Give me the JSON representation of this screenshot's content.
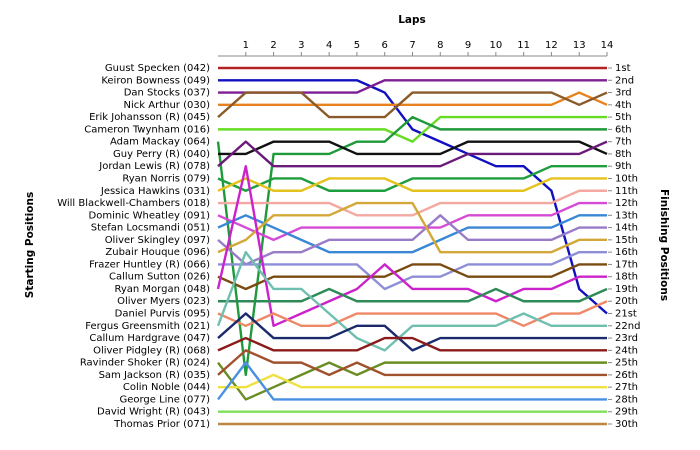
{
  "chart_data": {
    "type": "line",
    "x_label": "Laps",
    "y_label": "Starting Positions",
    "y2_label": "Finishing Positions",
    "x": [
      0,
      1,
      2,
      3,
      4,
      5,
      6,
      7,
      8,
      9,
      10,
      11,
      12,
      13,
      14
    ],
    "xlim": [
      0,
      14
    ],
    "xticks": [
      1,
      2,
      3,
      4,
      5,
      6,
      7,
      8,
      9,
      10,
      11,
      12,
      13,
      14
    ],
    "ylim": [
      30,
      1
    ],
    "y2lim": [
      30,
      1
    ],
    "y2ticks": [
      {
        "value": 1,
        "label": "1st"
      },
      {
        "value": 2,
        "label": "2nd"
      },
      {
        "value": 3,
        "label": "3rd"
      },
      {
        "value": 4,
        "label": "4th"
      },
      {
        "value": 5,
        "label": "5th"
      },
      {
        "value": 6,
        "label": "6th"
      },
      {
        "value": 7,
        "label": "7th"
      },
      {
        "value": 8,
        "label": "8th"
      },
      {
        "value": 9,
        "label": "9th"
      },
      {
        "value": 10,
        "label": "10th"
      },
      {
        "value": 11,
        "label": "11th"
      },
      {
        "value": 12,
        "label": "12th"
      },
      {
        "value": 13,
        "label": "13th"
      },
      {
        "value": 14,
        "label": "14th"
      },
      {
        "value": 15,
        "label": "15th"
      },
      {
        "value": 16,
        "label": "16th"
      },
      {
        "value": 17,
        "label": "17th"
      },
      {
        "value": 18,
        "label": "18th"
      },
      {
        "value": 19,
        "label": "19th"
      },
      {
        "value": 20,
        "label": "20th"
      },
      {
        "value": 21,
        "label": "21st"
      },
      {
        "value": 22,
        "label": "22nd"
      },
      {
        "value": 23,
        "label": "23rd"
      },
      {
        "value": 24,
        "label": "24th"
      },
      {
        "value": 25,
        "label": "25th"
      },
      {
        "value": 26,
        "label": "26th"
      },
      {
        "value": 27,
        "label": "27th"
      },
      {
        "value": 28,
        "label": "28th"
      },
      {
        "value": 29,
        "label": "29th"
      },
      {
        "value": 30,
        "label": "30th"
      }
    ],
    "series": [
      {
        "name": "Guust Specken (042)",
        "color": "#b22222",
        "values": [
          1,
          1,
          1,
          1,
          1,
          1,
          1,
          1,
          1,
          1,
          1,
          1,
          1,
          1,
          1
        ]
      },
      {
        "name": "Keiron Bowness (049)",
        "color": "#1010c0",
        "values": [
          2,
          2,
          2,
          2,
          2,
          2,
          3,
          6,
          7,
          8,
          9,
          9,
          11,
          19,
          21
        ]
      },
      {
        "name": "Dan Stocks (037)",
        "color": "#7b1f92",
        "values": [
          3,
          3,
          3,
          3,
          3,
          3,
          2,
          2,
          2,
          2,
          2,
          2,
          2,
          2,
          2
        ]
      },
      {
        "name": "Nick Arthur (030)",
        "color": "#e8821e",
        "values": [
          4,
          4,
          4,
          4,
          4,
          4,
          4,
          4,
          4,
          4,
          4,
          4,
          4,
          3,
          4
        ]
      },
      {
        "name": "Erik Johansson (R) (045)",
        "color": "#8b5a2b",
        "values": [
          5,
          3,
          3,
          3,
          5,
          5,
          5,
          3,
          3,
          3,
          3,
          3,
          3,
          4,
          3
        ]
      },
      {
        "name": "Cameron Twynham (016)",
        "color": "#66dd22",
        "values": [
          6,
          6,
          6,
          6,
          6,
          6,
          6,
          7,
          5,
          5,
          5,
          5,
          5,
          5,
          5
        ]
      },
      {
        "name": "Adam Mackay (064)",
        "color": "#1f9a3a",
        "values": [
          7,
          26,
          8,
          8,
          8,
          7,
          7,
          5,
          6,
          6,
          6,
          6,
          6,
          6,
          6
        ]
      },
      {
        "name": "Guy Perry (R) (040)",
        "color": "#111111",
        "values": [
          8,
          8,
          7,
          7,
          7,
          8,
          8,
          8,
          8,
          7,
          7,
          7,
          7,
          7,
          8
        ]
      },
      {
        "name": "Jordan Lewis (R) (078)",
        "color": "#6a1b7a",
        "values": [
          9,
          7,
          9,
          9,
          9,
          9,
          9,
          9,
          9,
          8,
          8,
          8,
          8,
          8,
          7
        ]
      },
      {
        "name": "Ryan Norris (079)",
        "color": "#1e9e3e",
        "values": [
          10,
          11,
          10,
          10,
          11,
          11,
          11,
          10,
          10,
          10,
          10,
          10,
          9,
          9,
          9
        ]
      },
      {
        "name": "Jessica Hawkins (031)",
        "color": "#e6c21e",
        "values": [
          11,
          10,
          11,
          11,
          10,
          10,
          10,
          11,
          11,
          11,
          11,
          11,
          10,
          10,
          10
        ]
      },
      {
        "name": "Will Blackwell-Chambers (018)",
        "color": "#f4a8a0",
        "values": [
          12,
          12,
          12,
          12,
          12,
          13,
          13,
          13,
          12,
          12,
          12,
          12,
          12,
          11,
          11
        ]
      },
      {
        "name": "Dominic Wheatley (091)",
        "color": "#d64bd6",
        "values": [
          13,
          14,
          15,
          14,
          14,
          14,
          14,
          14,
          14,
          13,
          13,
          13,
          13,
          12,
          12
        ]
      },
      {
        "name": "Stefan Locsmandi (051)",
        "color": "#3a87d6",
        "values": [
          14,
          13,
          14,
          15,
          16,
          16,
          16,
          16,
          15,
          14,
          14,
          14,
          14,
          13,
          13
        ]
      },
      {
        "name": "Oliver Skingley (097)",
        "color": "#9a7bc8",
        "values": [
          15,
          17,
          16,
          16,
          15,
          15,
          15,
          15,
          13,
          15,
          15,
          15,
          15,
          14,
          14
        ]
      },
      {
        "name": "Zubair Houque (096)",
        "color": "#d4a838",
        "values": [
          16,
          15,
          13,
          13,
          13,
          12,
          12,
          12,
          16,
          16,
          16,
          16,
          16,
          15,
          15
        ]
      },
      {
        "name": "Frazer Huntley (R) (066)",
        "color": "#8e8ed8",
        "values": [
          17,
          17,
          17,
          17,
          17,
          17,
          19,
          18,
          18,
          17,
          17,
          17,
          17,
          16,
          16
        ]
      },
      {
        "name": "Callum Sutton (026)",
        "color": "#7a4a10",
        "values": [
          18,
          19,
          18,
          18,
          18,
          18,
          18,
          17,
          17,
          18,
          18,
          18,
          18,
          17,
          17
        ]
      },
      {
        "name": "Ryan Morgan (048)",
        "color": "#cc22cc",
        "values": [
          19,
          9,
          22,
          21,
          20,
          19,
          17,
          19,
          19,
          19,
          20,
          19,
          19,
          18,
          18
        ]
      },
      {
        "name": "Oliver Myers (023)",
        "color": "#2e8b57",
        "values": [
          20,
          20,
          20,
          20,
          19,
          20,
          20,
          20,
          20,
          20,
          19,
          20,
          20,
          20,
          19
        ]
      },
      {
        "name": "Daniel Purvis (095)",
        "color": "#ee8866",
        "values": [
          21,
          22,
          21,
          22,
          22,
          21,
          21,
          21,
          21,
          21,
          21,
          22,
          21,
          21,
          20
        ]
      },
      {
        "name": "Fergus Greensmith (021)",
        "color": "#6fbfaf",
        "values": [
          22,
          16,
          19,
          19,
          21,
          23,
          24,
          22,
          22,
          22,
          22,
          21,
          22,
          22,
          22
        ]
      },
      {
        "name": "Callum Hardgrave (047)",
        "color": "#1a2a6c",
        "values": [
          23,
          21,
          23,
          23,
          23,
          22,
          22,
          24,
          23,
          23,
          23,
          23,
          23,
          23,
          23
        ]
      },
      {
        "name": "Oliver Pidgley (R) (068)",
        "color": "#8b1a1a",
        "values": [
          24,
          23,
          24,
          24,
          24,
          24,
          23,
          23,
          24,
          24,
          24,
          24,
          24,
          24,
          24
        ]
      },
      {
        "name": "Ravinder Shoker (R) (024)",
        "color": "#6b8e23",
        "values": [
          25,
          28,
          27,
          26,
          25,
          26,
          25,
          25,
          25,
          25,
          25,
          25,
          25,
          25,
          25
        ]
      },
      {
        "name": "Sam Jackson (R) (035)",
        "color": "#a0522d",
        "values": [
          26,
          24,
          25,
          25,
          26,
          25,
          26,
          26,
          26,
          26,
          26,
          26,
          26,
          26,
          26
        ]
      },
      {
        "name": "Colin Noble (044)",
        "color": "#f0e040",
        "values": [
          27,
          27,
          26,
          27,
          27,
          27,
          27,
          27,
          27,
          27,
          27,
          27,
          27,
          27,
          27
        ]
      },
      {
        "name": "George Line (077)",
        "color": "#4a90e2",
        "values": [
          28,
          25,
          28,
          28,
          28,
          28,
          28,
          28,
          28,
          28,
          28,
          28,
          28,
          28,
          28
        ]
      },
      {
        "name": "David Wright (R) (043)",
        "color": "#7ee05a",
        "values": [
          29,
          29,
          29,
          29,
          29,
          29,
          29,
          29,
          29,
          29,
          29,
          29,
          29,
          29,
          29
        ]
      },
      {
        "name": "Thomas Prior (071)",
        "color": "#bb8844",
        "values": [
          30,
          30,
          30,
          30,
          30,
          30,
          30,
          30,
          30,
          30,
          30,
          30,
          30,
          30,
          30
        ]
      }
    ]
  }
}
